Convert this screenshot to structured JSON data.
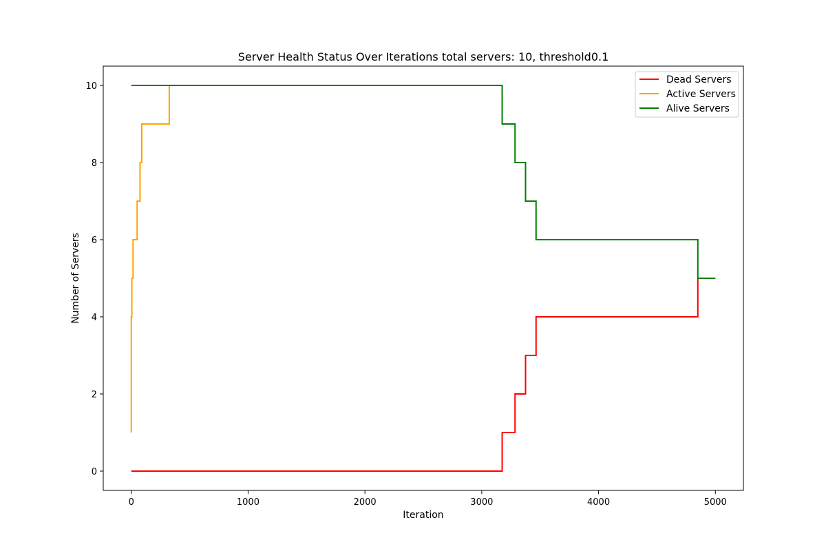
{
  "chart_data": {
    "type": "line",
    "title": "Server Health Status Over Iterations total servers: 10, threshold0.1",
    "xlabel": "Iteration",
    "ylabel": "Number of Servers",
    "xlim": [
      -240,
      5240
    ],
    "ylim": [
      -0.5,
      10.5
    ],
    "xticks": [
      0,
      1000,
      2000,
      3000,
      4000,
      5000
    ],
    "yticks": [
      0,
      2,
      4,
      6,
      8,
      10
    ],
    "grid": false,
    "legend_position": "top-right",
    "series": [
      {
        "name": "Dead Servers",
        "color": "#ff0000",
        "points": [
          [
            0,
            0
          ],
          [
            3175,
            0
          ],
          [
            3175,
            1
          ],
          [
            3285,
            1
          ],
          [
            3285,
            2
          ],
          [
            3375,
            2
          ],
          [
            3375,
            3
          ],
          [
            3465,
            3
          ],
          [
            3465,
            4
          ],
          [
            4850,
            4
          ],
          [
            4850,
            5
          ]
        ]
      },
      {
        "name": "Active Servers",
        "color": "#ffa500",
        "points": [
          [
            0,
            1
          ],
          [
            0,
            4
          ],
          [
            5,
            4
          ],
          [
            5,
            5
          ],
          [
            15,
            5
          ],
          [
            15,
            6
          ],
          [
            50,
            6
          ],
          [
            50,
            7
          ],
          [
            75,
            7
          ],
          [
            75,
            8
          ],
          [
            90,
            8
          ],
          [
            90,
            9
          ],
          [
            325,
            9
          ],
          [
            325,
            10
          ]
        ]
      },
      {
        "name": "Alive Servers",
        "color": "#008000",
        "points": [
          [
            0,
            10
          ],
          [
            3175,
            10
          ],
          [
            3175,
            9
          ],
          [
            3285,
            9
          ],
          [
            3285,
            8
          ],
          [
            3375,
            8
          ],
          [
            3375,
            7
          ],
          [
            3465,
            7
          ],
          [
            3465,
            6
          ],
          [
            4850,
            6
          ],
          [
            4850,
            5
          ],
          [
            5000,
            5
          ]
        ]
      }
    ]
  }
}
